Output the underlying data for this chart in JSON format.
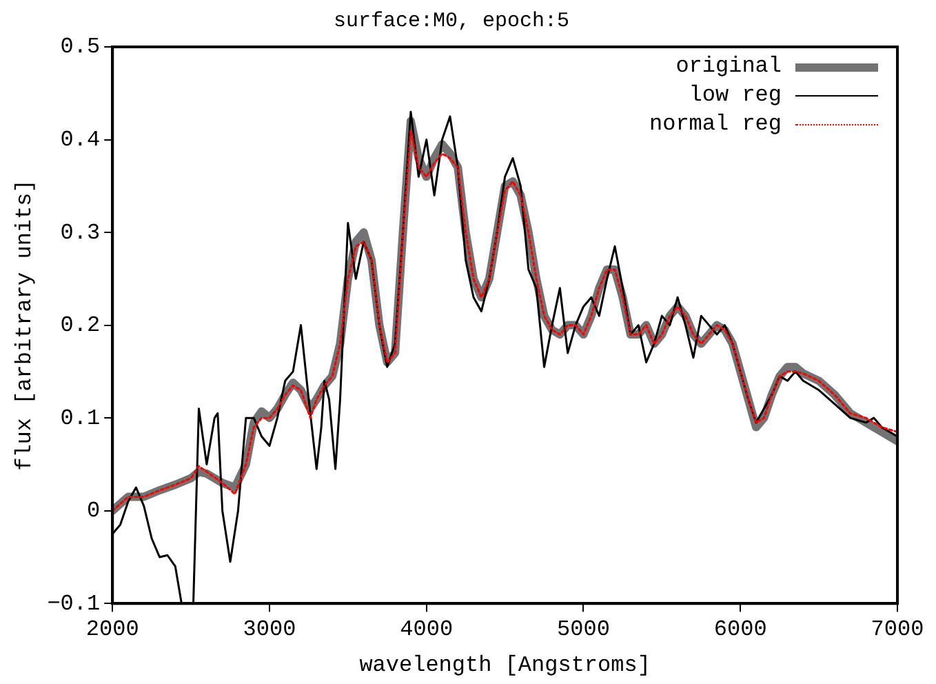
{
  "chart_data": {
    "type": "line",
    "title": "surface:M0, epoch:5",
    "xlabel": "wavelength [Angstroms]",
    "ylabel": "flux [arbitrary units]",
    "xlim": [
      2000,
      7000
    ],
    "xticks": [
      2000,
      3000,
      4000,
      5000,
      6000,
      7000
    ],
    "ylim": [
      -0.1,
      0.5
    ],
    "yticks": [
      {
        "value": -0.1,
        "label": "−0.1"
      },
      0,
      0.1,
      0.2,
      0.3,
      0.4,
      0.5
    ],
    "grid": false,
    "legend": "top right",
    "marker": "none",
    "series": [
      {
        "name": "original",
        "color": "#737373",
        "line_style": "solid",
        "x": [
          2000,
          2100,
          2200,
          2300,
          2400,
          2500,
          2550,
          2600,
          2700,
          2780,
          2850,
          2900,
          2950,
          3000,
          3050,
          3100,
          3150,
          3200,
          3260,
          3300,
          3350,
          3400,
          3450,
          3500,
          3550,
          3600,
          3650,
          3700,
          3750,
          3800,
          3850,
          3900,
          3950,
          4000,
          4050,
          4100,
          4150,
          4200,
          4250,
          4300,
          4350,
          4400,
          4450,
          4500,
          4550,
          4600,
          4650,
          4700,
          4750,
          4800,
          4850,
          4900,
          4950,
          5000,
          5050,
          5100,
          5150,
          5200,
          5250,
          5300,
          5350,
          5400,
          5450,
          5500,
          5550,
          5600,
          5650,
          5700,
          5750,
          5800,
          5850,
          5900,
          5950,
          6000,
          6050,
          6100,
          6150,
          6200,
          6250,
          6300,
          6350,
          6400,
          6500,
          6600,
          6700,
          6800,
          6900,
          7000
        ],
        "values": [
          0.0,
          0.015,
          0.015,
          0.022,
          0.028,
          0.035,
          0.042,
          0.04,
          0.03,
          0.025,
          0.05,
          0.095,
          0.107,
          0.1,
          0.11,
          0.125,
          0.138,
          0.13,
          0.11,
          0.12,
          0.135,
          0.145,
          0.18,
          0.25,
          0.29,
          0.3,
          0.27,
          0.2,
          0.16,
          0.17,
          0.3,
          0.42,
          0.38,
          0.36,
          0.38,
          0.395,
          0.385,
          0.37,
          0.3,
          0.25,
          0.23,
          0.25,
          0.3,
          0.35,
          0.355,
          0.34,
          0.3,
          0.25,
          0.21,
          0.195,
          0.19,
          0.2,
          0.2,
          0.19,
          0.21,
          0.24,
          0.26,
          0.26,
          0.23,
          0.19,
          0.19,
          0.2,
          0.18,
          0.19,
          0.21,
          0.22,
          0.21,
          0.19,
          0.18,
          0.19,
          0.2,
          0.195,
          0.18,
          0.15,
          0.12,
          0.09,
          0.1,
          0.125,
          0.145,
          0.155,
          0.155,
          0.148,
          0.14,
          0.125,
          0.105,
          0.095,
          0.085,
          0.075
        ]
      },
      {
        "name": "low reg",
        "color": "#000000",
        "line_style": "solid",
        "x": [
          2000,
          2050,
          2100,
          2150,
          2200,
          2250,
          2300,
          2350,
          2400,
          2440,
          2480,
          2515,
          2550,
          2600,
          2650,
          2670,
          2700,
          2750,
          2800,
          2850,
          2900,
          2950,
          3000,
          3050,
          3100,
          3150,
          3200,
          3250,
          3300,
          3330,
          3350,
          3380,
          3420,
          3450,
          3500,
          3550,
          3600,
          3650,
          3700,
          3750,
          3800,
          3850,
          3900,
          3950,
          4000,
          4050,
          4100,
          4150,
          4200,
          4250,
          4300,
          4350,
          4400,
          4450,
          4500,
          4550,
          4600,
          4650,
          4700,
          4750,
          4800,
          4850,
          4900,
          4950,
          5000,
          5050,
          5100,
          5150,
          5200,
          5250,
          5300,
          5350,
          5400,
          5450,
          5500,
          5550,
          5600,
          5650,
          5700,
          5750,
          5800,
          5850,
          5900,
          5950,
          6000,
          6050,
          6100,
          6150,
          6200,
          6250,
          6300,
          6350,
          6400,
          6500,
          6600,
          6700,
          6800,
          6850,
          6900,
          7000
        ],
        "values": [
          -0.025,
          -0.015,
          0.01,
          0.025,
          0.005,
          -0.03,
          -0.05,
          -0.048,
          -0.06,
          -0.1,
          null,
          -0.1,
          0.11,
          0.05,
          0.1,
          0.105,
          0.0,
          -0.055,
          0.0,
          0.1,
          0.1,
          0.08,
          0.07,
          0.1,
          0.14,
          0.15,
          0.2,
          0.12,
          0.045,
          0.09,
          0.14,
          0.12,
          0.045,
          0.12,
          0.31,
          0.25,
          0.29,
          0.27,
          0.2,
          0.155,
          0.18,
          0.3,
          0.43,
          0.36,
          0.4,
          0.34,
          0.4,
          0.425,
          0.37,
          0.27,
          0.23,
          0.215,
          0.25,
          0.3,
          0.36,
          0.38,
          0.35,
          0.26,
          0.24,
          0.155,
          0.2,
          0.24,
          0.17,
          0.2,
          0.22,
          0.23,
          0.21,
          0.25,
          0.285,
          0.24,
          0.19,
          0.2,
          0.16,
          0.18,
          0.21,
          0.2,
          0.23,
          0.2,
          0.165,
          0.21,
          0.2,
          0.19,
          0.2,
          0.18,
          0.15,
          0.12,
          0.095,
          0.11,
          0.125,
          0.145,
          0.14,
          0.15,
          0.14,
          0.13,
          0.115,
          0.1,
          0.095,
          0.1,
          0.09,
          0.08
        ]
      },
      {
        "name": "normal reg",
        "color": "#ff0000",
        "line_style": "dotted",
        "x": [
          2000,
          2100,
          2200,
          2300,
          2400,
          2500,
          2550,
          2600,
          2700,
          2780,
          2850,
          2900,
          2950,
          3000,
          3050,
          3100,
          3150,
          3200,
          3260,
          3300,
          3350,
          3400,
          3450,
          3500,
          3550,
          3600,
          3650,
          3700,
          3750,
          3800,
          3850,
          3900,
          3950,
          4000,
          4050,
          4100,
          4150,
          4200,
          4250,
          4300,
          4350,
          4400,
          4450,
          4500,
          4550,
          4600,
          4650,
          4700,
          4750,
          4800,
          4850,
          4900,
          4950,
          5000,
          5050,
          5100,
          5150,
          5200,
          5250,
          5300,
          5350,
          5400,
          5450,
          5500,
          5550,
          5600,
          5650,
          5700,
          5750,
          5800,
          5850,
          5900,
          5950,
          6000,
          6050,
          6100,
          6150,
          6200,
          6250,
          6300,
          6350,
          6400,
          6500,
          6600,
          6700,
          6800,
          6900,
          7000
        ],
        "values": [
          0.0,
          0.015,
          0.015,
          0.022,
          0.028,
          0.035,
          0.048,
          0.042,
          0.03,
          0.018,
          0.05,
          0.09,
          0.1,
          0.1,
          0.11,
          0.125,
          0.135,
          0.13,
          0.1,
          0.12,
          0.135,
          0.145,
          0.18,
          0.25,
          0.285,
          0.29,
          0.27,
          0.2,
          0.16,
          0.17,
          0.3,
          0.41,
          0.37,
          0.36,
          0.375,
          0.385,
          0.38,
          0.37,
          0.3,
          0.25,
          0.23,
          0.25,
          0.3,
          0.345,
          0.355,
          0.34,
          0.3,
          0.25,
          0.21,
          0.195,
          0.19,
          0.2,
          0.2,
          0.19,
          0.21,
          0.24,
          0.26,
          0.26,
          0.23,
          0.19,
          0.19,
          0.2,
          0.18,
          0.19,
          0.21,
          0.22,
          0.21,
          0.19,
          0.18,
          0.19,
          0.2,
          0.195,
          0.18,
          0.15,
          0.12,
          0.095,
          0.1,
          0.125,
          0.145,
          0.15,
          0.15,
          0.148,
          0.14,
          0.125,
          0.105,
          0.1,
          0.09,
          0.085
        ]
      }
    ]
  }
}
